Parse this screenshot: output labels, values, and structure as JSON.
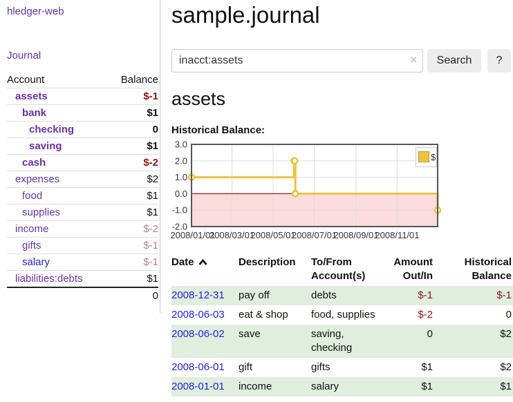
{
  "theme": {
    "link_purple": "#6633aa",
    "link_blue": "#2222dd",
    "negative_strong": "#8b1515",
    "negative_muted": "#c08080",
    "stripe_green": "#dfeedd",
    "series_yellow": "#edc240"
  },
  "sidebar": {
    "brand": "hledger-web",
    "nav": {
      "journal": "Journal"
    },
    "accounts_table": {
      "account_header": "Account",
      "balance_header": "Balance",
      "rows": [
        {
          "name": "assets",
          "balance": "$-1",
          "depth": 1,
          "bold": true,
          "name_color": "#6633aa",
          "balance_color": "#8b1515"
        },
        {
          "name": "bank",
          "balance": "$1",
          "depth": 2,
          "bold": true,
          "name_color": "#6633aa",
          "balance_color": "#111111"
        },
        {
          "name": "checking",
          "balance": "0",
          "depth": 3,
          "bold": true,
          "name_color": "#6633aa",
          "balance_color": "#111111"
        },
        {
          "name": "saving",
          "balance": "$1",
          "depth": 3,
          "bold": true,
          "name_color": "#6633aa",
          "balance_color": "#111111"
        },
        {
          "name": "cash",
          "balance": "$-2",
          "depth": 2,
          "bold": true,
          "name_color": "#6633aa",
          "balance_color": "#8b1515"
        },
        {
          "name": "expenses",
          "balance": "$2",
          "depth": 1,
          "bold": false,
          "name_color": "#6633aa",
          "balance_color": "#111111"
        },
        {
          "name": "food",
          "balance": "$1",
          "depth": 2,
          "bold": false,
          "name_color": "#6633aa",
          "balance_color": "#111111"
        },
        {
          "name": "supplies",
          "balance": "$1",
          "depth": 2,
          "bold": false,
          "name_color": "#6633aa",
          "balance_color": "#111111"
        },
        {
          "name": "income",
          "balance": "$-2",
          "depth": 1,
          "bold": false,
          "name_color": "#6633aa",
          "balance_color": "#c08080"
        },
        {
          "name": "gifts",
          "balance": "$-1",
          "depth": 2,
          "bold": false,
          "name_color": "#6633aa",
          "balance_color": "#c08080"
        },
        {
          "name": "salary",
          "balance": "$-1",
          "depth": 2,
          "bold": false,
          "name_color": "#2222dd",
          "balance_color": "#c08080"
        },
        {
          "name": "liabilities:debts",
          "balance": "$1",
          "depth": 1,
          "bold": false,
          "name_color": "#6633aa",
          "balance_color": "#111111"
        }
      ],
      "total": "0"
    }
  },
  "header": {
    "title": "sample.journal"
  },
  "search": {
    "value": "inacct:assets",
    "clear_icon": "×",
    "button_label": "Search",
    "help_label": "?"
  },
  "account_page": {
    "title": "assets",
    "chart_label": "Historical Balance:"
  },
  "chart_data": {
    "type": "line",
    "steps": true,
    "title": "Historical Balance:",
    "legend": "$",
    "legend_position": "top-right",
    "xlim": [
      "2008/01/01",
      "2008/12/31"
    ],
    "ylim": [
      -2,
      3
    ],
    "yticks": [
      -2,
      -1,
      0,
      1,
      2,
      3
    ],
    "ytick_labels": [
      "-2.0",
      "-1.0",
      "0.0",
      "1.0",
      "2.0",
      "3.0"
    ],
    "xticks": [
      "2008/01/01",
      "2008/03/01",
      "2008/05/01",
      "2008/07/01",
      "2008/09/01",
      "2008/11/01"
    ],
    "series": [
      {
        "name": "$",
        "color": "#edc240",
        "points": [
          [
            "2008/01/01",
            1
          ],
          [
            "2008/06/01",
            2
          ],
          [
            "2008/06/02",
            2
          ],
          [
            "2008/06/03",
            0
          ],
          [
            "2008/12/31",
            -1
          ]
        ]
      }
    ],
    "negative_region_color": "#fbdcdc",
    "zero_line_color": "#8b1a1a",
    "grid": true
  },
  "register_table": {
    "headers": {
      "date": "Date",
      "description": "Description",
      "accounts": "To/From Account(s)",
      "amount": "Amount Out/In",
      "balance": "Historical Balance"
    },
    "rows": [
      {
        "date": "2008-12-31",
        "description": "pay off",
        "accounts": "debts",
        "amount": "$-1",
        "balance": "$-1",
        "amount_color": "#8b1515",
        "balance_color": "#8b1515"
      },
      {
        "date": "2008-06-03",
        "description": "eat & shop",
        "accounts": "food, supplies",
        "amount": "$-2",
        "balance": "0",
        "amount_color": "#8b1515",
        "balance_color": "#111111"
      },
      {
        "date": "2008-06-02",
        "description": "save",
        "accounts": "saving, checking",
        "amount": "0",
        "balance": "$2",
        "amount_color": "#111111",
        "balance_color": "#111111"
      },
      {
        "date": "2008-06-01",
        "description": "gift",
        "accounts": "gifts",
        "amount": "$1",
        "balance": "$2",
        "amount_color": "#111111",
        "balance_color": "#111111"
      },
      {
        "date": "2008-01-01",
        "description": "income",
        "accounts": "salary",
        "amount": "$1",
        "balance": "$1",
        "amount_color": "#111111",
        "balance_color": "#111111"
      }
    ]
  }
}
